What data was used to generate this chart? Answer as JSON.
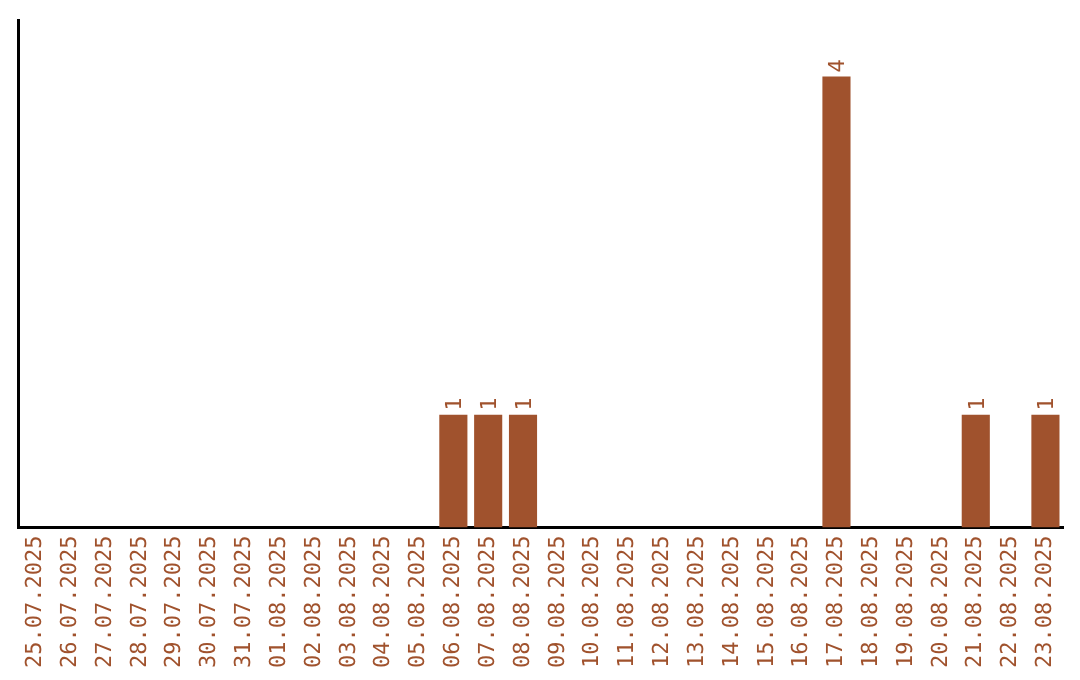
{
  "chart_data": {
    "type": "bar",
    "categories": [
      "25.07.2025",
      "26.07.2025",
      "27.07.2025",
      "28.07.2025",
      "29.07.2025",
      "30.07.2025",
      "31.07.2025",
      "01.08.2025",
      "02.08.2025",
      "03.08.2025",
      "04.08.2025",
      "05.08.2025",
      "06.08.2025",
      "07.08.2025",
      "08.08.2025",
      "09.08.2025",
      "10.08.2025",
      "11.08.2025",
      "12.08.2025",
      "13.08.2025",
      "14.08.2025",
      "15.08.2025",
      "16.08.2025",
      "17.08.2025",
      "18.08.2025",
      "19.08.2025",
      "20.08.2025",
      "21.08.2025",
      "22.08.2025",
      "23.08.2025"
    ],
    "values": [
      null,
      null,
      null,
      null,
      null,
      null,
      null,
      null,
      null,
      null,
      null,
      null,
      1,
      1,
      1,
      null,
      null,
      null,
      null,
      null,
      null,
      null,
      null,
      4,
      null,
      null,
      null,
      1,
      null,
      1
    ],
    "data_labels": true,
    "color": "#a0522d",
    "grid": false,
    "legend": false,
    "tick_labels": "x"
  }
}
